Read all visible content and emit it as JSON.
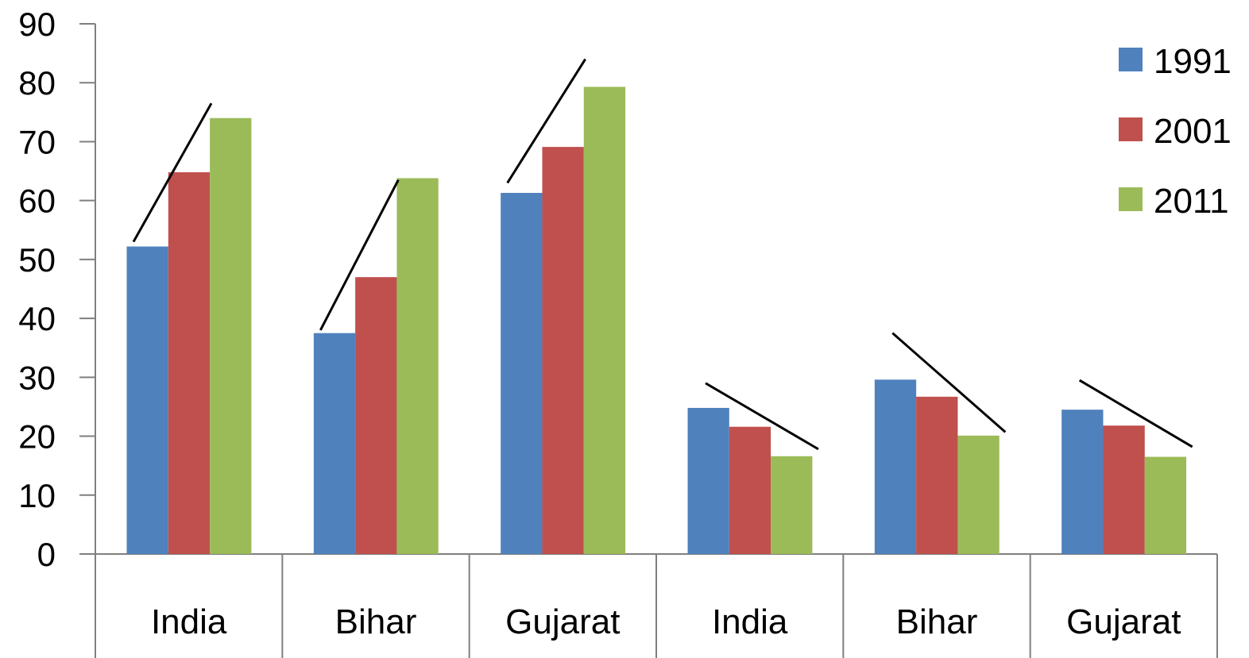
{
  "chart_data": {
    "type": "bar",
    "title": "",
    "xlabel": "",
    "ylabel": "",
    "ylim": [
      0,
      90
    ],
    "yticks": [
      0,
      10,
      20,
      30,
      40,
      50,
      60,
      70,
      80,
      90
    ],
    "grid": false,
    "legend_position": "top-right",
    "categories": [
      "India",
      "Bihar",
      "Gujarat",
      "India",
      "Bihar",
      "Gujarat"
    ],
    "series": [
      {
        "name": "1991",
        "color": "#4f81bd",
        "values": [
          52.2,
          37.5,
          61.3,
          24.8,
          29.6,
          24.5
        ]
      },
      {
        "name": "2001",
        "color": "#c0504d",
        "values": [
          64.8,
          47.0,
          69.1,
          21.6,
          26.7,
          21.8
        ]
      },
      {
        "name": "2011",
        "color": "#9bbb59",
        "values": [
          74.0,
          63.8,
          79.3,
          16.6,
          20.1,
          16.5
        ]
      }
    ],
    "annotations": {
      "trend_lines": [
        {
          "category_index": 0,
          "direction": "up",
          "y_start": 53.0,
          "y_end": 76.5
        },
        {
          "category_index": 1,
          "direction": "up",
          "y_start": 38.0,
          "y_end": 63.5
        },
        {
          "category_index": 2,
          "direction": "up",
          "y_start": 63.0,
          "y_end": 84.0
        },
        {
          "category_index": 3,
          "direction": "down",
          "y_start": 29.0,
          "y_end": 17.8
        },
        {
          "category_index": 4,
          "direction": "down",
          "y_start": 37.5,
          "y_end": 20.7
        },
        {
          "category_index": 5,
          "direction": "down",
          "y_start": 29.5,
          "y_end": 18.2
        }
      ]
    }
  }
}
